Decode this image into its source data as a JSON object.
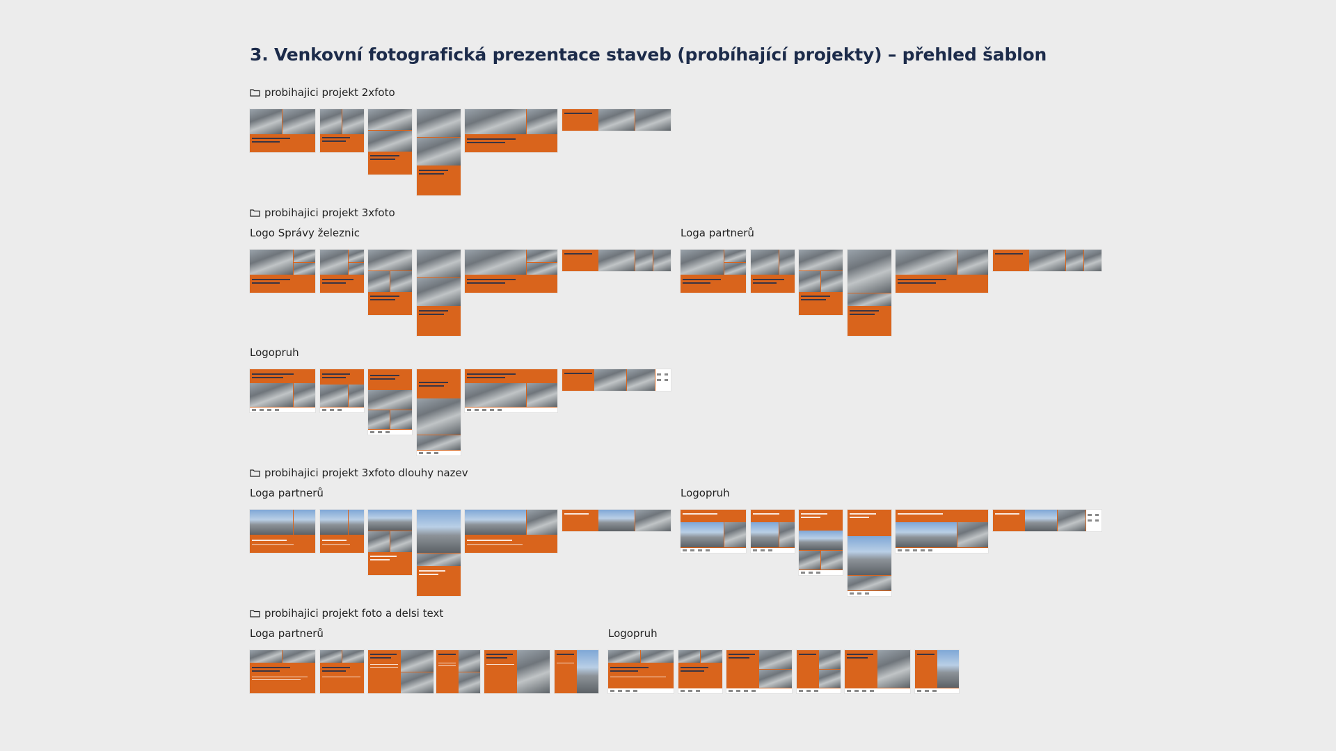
{
  "title": "3. Venkovní fotografická prezentace staveb (probíhající projekty) – přehled šablon",
  "sections": {
    "s1": {
      "folder": "probihajici projekt 2xfoto"
    },
    "s2": {
      "folder": "probihajici projekt 3xfoto",
      "sub_a": "Logo Správy železnic",
      "sub_b": "Loga partnerů",
      "sub_c": "Logopruh"
    },
    "s3": {
      "folder": "probihajici projekt 3xfoto dlouhy nazev",
      "sub_a": "Loga partnerů",
      "sub_b": "Logopruh"
    },
    "s4": {
      "folder": "probihajici projekt foto a delsi text",
      "sub_a": "Loga partnerů",
      "sub_b": "Logopruh"
    }
  },
  "icons": {
    "folder": "folder-icon"
  },
  "colors": {
    "accent": "#d9641c",
    "title": "#1c2b4a",
    "background": "#ececec"
  }
}
